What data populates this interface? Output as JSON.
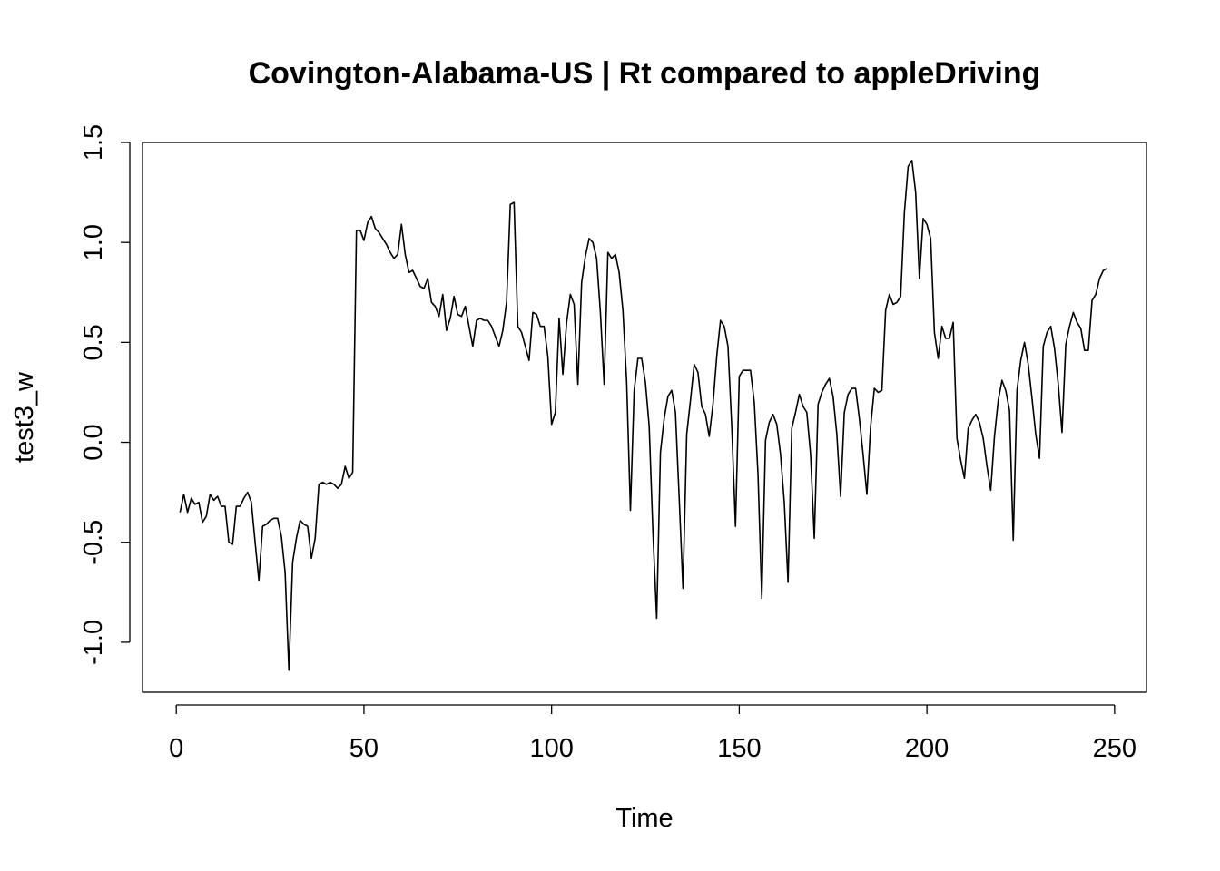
{
  "chart_data": {
    "type": "line",
    "title": "Covington-Alabama-US | Rt compared to appleDriving",
    "xlabel": "Time",
    "ylabel": "test3_w",
    "xlim": [
      -9,
      258.5
    ],
    "ylim": [
      -1.25,
      1.5
    ],
    "xticks": [
      0,
      50,
      100,
      150,
      200,
      250
    ],
    "yticks": [
      -1.0,
      -0.5,
      0.0,
      0.5,
      1.0,
      1.5
    ],
    "xtick_labels": [
      "0",
      "50",
      "100",
      "150",
      "200",
      "250"
    ],
    "ytick_labels": [
      "-1.0",
      "-0.5",
      "0.0",
      "0.5",
      "1.0",
      "1.5"
    ],
    "grid": false,
    "legend": "none",
    "series": [
      {
        "color": "#000000",
        "x": [
          1,
          2,
          3,
          4,
          5,
          6,
          7,
          8,
          9,
          10,
          11,
          12,
          13,
          14,
          15,
          16,
          17,
          18,
          19,
          20,
          21,
          22,
          23,
          24,
          25,
          26,
          27,
          28,
          29,
          30,
          31,
          32,
          33,
          34,
          35,
          36,
          37,
          38,
          39,
          40,
          41,
          42,
          43,
          44,
          45,
          46,
          47,
          48,
          49,
          50,
          51,
          52,
          53,
          54,
          55,
          56,
          57,
          58,
          59,
          60,
          61,
          62,
          63,
          64,
          65,
          66,
          67,
          68,
          69,
          70,
          71,
          72,
          73,
          74,
          75,
          76,
          77,
          78,
          79,
          80,
          81,
          82,
          83,
          84,
          85,
          86,
          87,
          88,
          89,
          90,
          91,
          92,
          93,
          94,
          95,
          96,
          97,
          98,
          99,
          100,
          101,
          102,
          103,
          104,
          105,
          106,
          107,
          108,
          109,
          110,
          111,
          112,
          113,
          114,
          115,
          116,
          117,
          118,
          119,
          120,
          121,
          122,
          123,
          124,
          125,
          126,
          127,
          128,
          129,
          130,
          131,
          132,
          133,
          134,
          135,
          136,
          137,
          138,
          139,
          140,
          141,
          142,
          143,
          144,
          145,
          146,
          147,
          148,
          149,
          150,
          151,
          152,
          153,
          154,
          155,
          156,
          157,
          158,
          159,
          160,
          161,
          162,
          163,
          164,
          165,
          166,
          167,
          168,
          169,
          170,
          171,
          172,
          173,
          174,
          175,
          176,
          177,
          178,
          179,
          180,
          181,
          182,
          183,
          184,
          185,
          186,
          187,
          188,
          189,
          190,
          191,
          192,
          193,
          194,
          195,
          196,
          197,
          198,
          199,
          200,
          201,
          202,
          203,
          204,
          205,
          206,
          207,
          208,
          209,
          210,
          211,
          212,
          213,
          214,
          215,
          216,
          217,
          218,
          219,
          220,
          221,
          222,
          223,
          224,
          225,
          226,
          227,
          228,
          229,
          230,
          231,
          232,
          233,
          234,
          235,
          236,
          237,
          238,
          239,
          240,
          241,
          242,
          243,
          244,
          245,
          246,
          247,
          248
        ],
        "y": [
          -0.35,
          -0.26,
          -0.35,
          -0.28,
          -0.31,
          -0.3,
          -0.4,
          -0.37,
          -0.26,
          -0.29,
          -0.27,
          -0.32,
          -0.32,
          -0.5,
          -0.51,
          -0.32,
          -0.32,
          -0.28,
          -0.25,
          -0.3,
          -0.5,
          -0.69,
          -0.42,
          -0.41,
          -0.39,
          -0.38,
          -0.38,
          -0.47,
          -0.65,
          -1.14,
          -0.6,
          -0.48,
          -0.39,
          -0.41,
          -0.42,
          -0.58,
          -0.48,
          -0.21,
          -0.2,
          -0.21,
          -0.2,
          -0.21,
          -0.23,
          -0.21,
          -0.12,
          -0.18,
          -0.15,
          1.06,
          1.06,
          1.01,
          1.1,
          1.13,
          1.07,
          1.05,
          1.02,
          0.99,
          0.95,
          0.92,
          0.94,
          1.09,
          0.94,
          0.85,
          0.86,
          0.82,
          0.78,
          0.77,
          0.82,
          0.7,
          0.68,
          0.63,
          0.74,
          0.56,
          0.62,
          0.73,
          0.64,
          0.63,
          0.68,
          0.58,
          0.48,
          0.61,
          0.62,
          0.61,
          0.61,
          0.58,
          0.53,
          0.48,
          0.56,
          0.7,
          1.19,
          1.2,
          0.58,
          0.55,
          0.48,
          0.41,
          0.65,
          0.64,
          0.58,
          0.58,
          0.43,
          0.09,
          0.15,
          0.62,
          0.34,
          0.6,
          0.74,
          0.69,
          0.29,
          0.8,
          0.93,
          1.02,
          1.0,
          0.92,
          0.65,
          0.29,
          0.95,
          0.92,
          0.94,
          0.85,
          0.66,
          0.3,
          -0.34,
          0.26,
          0.42,
          0.42,
          0.3,
          0.08,
          -0.45,
          -0.88,
          -0.05,
          0.12,
          0.23,
          0.26,
          0.15,
          -0.28,
          -0.73,
          0.04,
          0.21,
          0.39,
          0.35,
          0.18,
          0.14,
          0.03,
          0.19,
          0.43,
          0.61,
          0.58,
          0.48,
          0.08,
          -0.42,
          0.33,
          0.36,
          0.36,
          0.36,
          0.2,
          -0.16,
          -0.78,
          0.01,
          0.1,
          0.14,
          0.09,
          -0.06,
          -0.3,
          -0.7,
          0.07,
          0.15,
          0.24,
          0.18,
          0.15,
          -0.06,
          -0.48,
          0.19,
          0.25,
          0.29,
          0.32,
          0.23,
          0.04,
          -0.27,
          0.15,
          0.24,
          0.27,
          0.27,
          0.12,
          -0.06,
          -0.26,
          0.08,
          0.27,
          0.25,
          0.26,
          0.66,
          0.74,
          0.69,
          0.7,
          0.73,
          1.15,
          1.38,
          1.41,
          1.25,
          0.82,
          1.12,
          1.09,
          1.02,
          0.55,
          0.42,
          0.58,
          0.52,
          0.52,
          0.6,
          0.02,
          -0.09,
          -0.18,
          0.07,
          0.11,
          0.14,
          0.1,
          0.02,
          -0.12,
          -0.24,
          0.03,
          0.21,
          0.31,
          0.26,
          0.16,
          -0.49,
          0.26,
          0.41,
          0.5,
          0.39,
          0.22,
          0.04,
          -0.08,
          0.48,
          0.55,
          0.58,
          0.47,
          0.29,
          0.05,
          0.49,
          0.58,
          0.65,
          0.6,
          0.57,
          0.46,
          0.46,
          0.71,
          0.74,
          0.82,
          0.86,
          0.87
        ]
      }
    ]
  }
}
